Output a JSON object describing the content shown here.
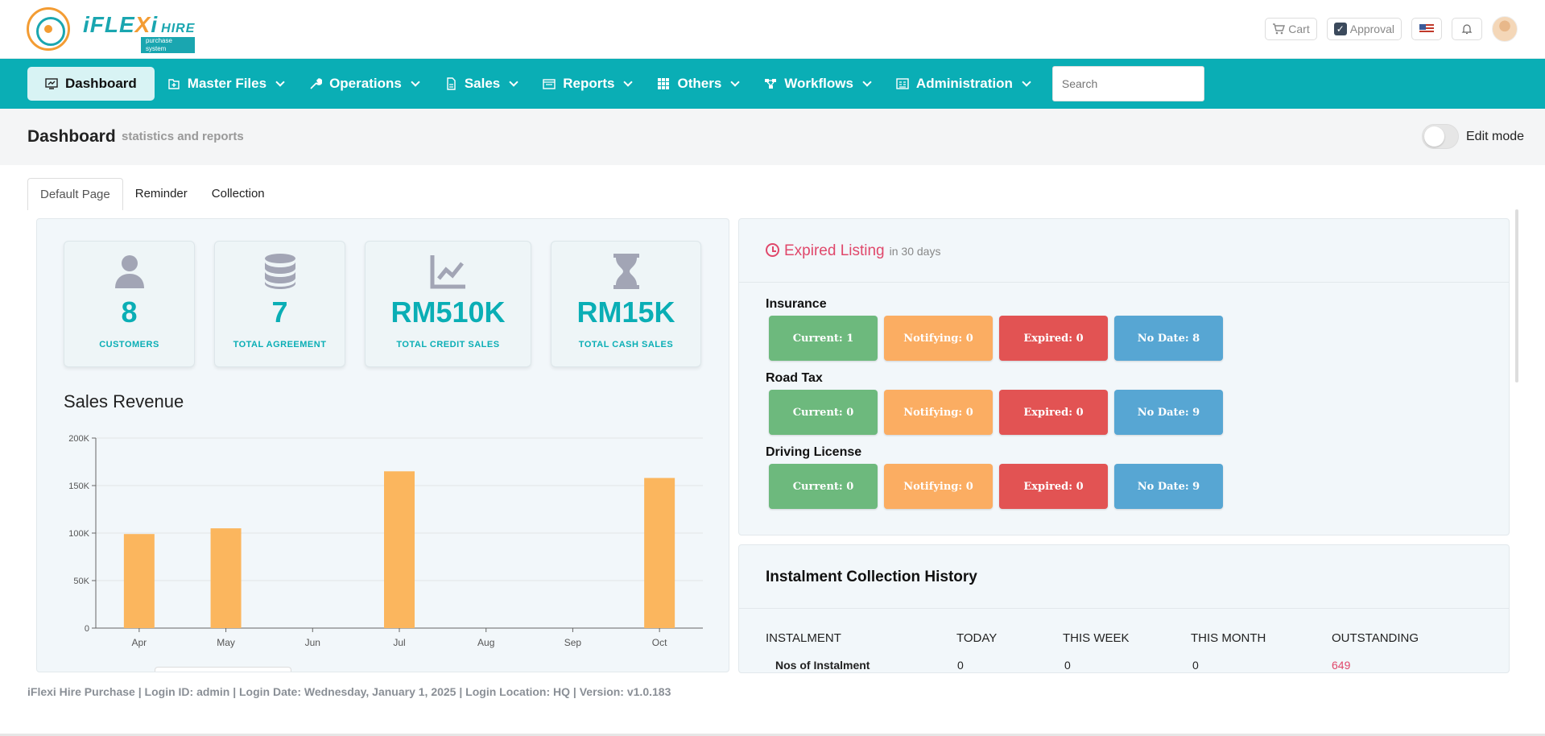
{
  "brand": {
    "logo_main_a": "iFLE",
    "logo_main_x": "X",
    "logo_main_b": "i",
    "logo_hire": "HIRE",
    "logo_sub": "purchase system"
  },
  "topbar": {
    "cart_label": "Cart",
    "approval_label": "Approval",
    "icons": [
      "cart-icon",
      "check-icon",
      "us-flag-icon",
      "bell-icon",
      "avatar"
    ]
  },
  "nav": {
    "items": [
      {
        "label": "Dashboard",
        "icon": "dashboard-icon"
      },
      {
        "label": "Master Files",
        "icon": "folder-plus-icon"
      },
      {
        "label": "Operations",
        "icon": "wrench-icon"
      },
      {
        "label": "Sales",
        "icon": "file-icon"
      },
      {
        "label": "Reports",
        "icon": "report-icon"
      },
      {
        "label": "Others",
        "icon": "grid-icon"
      },
      {
        "label": "Workflows",
        "icon": "workflow-icon"
      },
      {
        "label": "Administration",
        "icon": "admin-icon"
      }
    ],
    "search_placeholder": "Search"
  },
  "header": {
    "title": "Dashboard",
    "subtitle": "statistics and reports",
    "edit_mode_label": "Edit mode",
    "edit_mode_on": false
  },
  "tabs": [
    "Default Page",
    "Reminder",
    "Collection"
  ],
  "stats": [
    {
      "value": "8",
      "label": "CUSTOMERS",
      "icon": "user-icon"
    },
    {
      "value": "7",
      "label": "TOTAL AGREEMENT",
      "icon": "database-icon"
    },
    {
      "value": "RM510K",
      "label": "TOTAL CREDIT SALES",
      "icon": "line-chart-icon"
    },
    {
      "value": "RM15K",
      "label": "TOTAL CASH SALES",
      "icon": "hourglass-icon"
    }
  ],
  "sales_revenue": {
    "title": "Sales Revenue"
  },
  "chart_data": {
    "type": "bar",
    "title": "Sales Revenue",
    "categories": [
      "Apr",
      "May",
      "Jun",
      "Jul",
      "Aug",
      "Sep",
      "Oct"
    ],
    "values": [
      99000,
      105000,
      0,
      165000,
      0,
      0,
      158000
    ],
    "ylim": [
      0,
      200000
    ],
    "ytick_labels": [
      "0",
      "50K",
      "100K",
      "150K",
      "200K"
    ],
    "color": "#fbb65e",
    "grid": true
  },
  "expired": {
    "title": "Expired Listing",
    "subtitle": "in 30 days",
    "groups": [
      {
        "label": "Insurance",
        "current": "Current: 1",
        "notifying": "Notifying: 0",
        "expired": "Expired: 0",
        "nodate": "No Date: 8"
      },
      {
        "label": "Road Tax",
        "current": "Current: 0",
        "notifying": "Notifying: 0",
        "expired": "Expired: 0",
        "nodate": "No Date: 9"
      },
      {
        "label": "Driving License",
        "current": "Current: 0",
        "notifying": "Notifying: 0",
        "expired": "Expired: 0",
        "nodate": "No Date: 9"
      }
    ],
    "colors": {
      "current": "#6db97d",
      "notifying": "#fbad62",
      "expired": "#e25353",
      "nodate": "#57a6d3"
    }
  },
  "collection": {
    "title": "Instalment Collection History",
    "headers": [
      "INSTALMENT",
      "TODAY",
      "THIS WEEK",
      "THIS MONTH",
      "OUTSTANDING"
    ],
    "row": {
      "label": "Nos of Instalment",
      "today": "0",
      "week": "0",
      "month": "0",
      "outstanding": "649"
    },
    "outstanding_color": "#e0486b"
  },
  "footer": "iFlexi Hire Purchase | Login ID: admin | Login Date: Wednesday, January 1, 2025 | Login Location: HQ | Version: v1.0.183",
  "accent": "#0aaeb5"
}
